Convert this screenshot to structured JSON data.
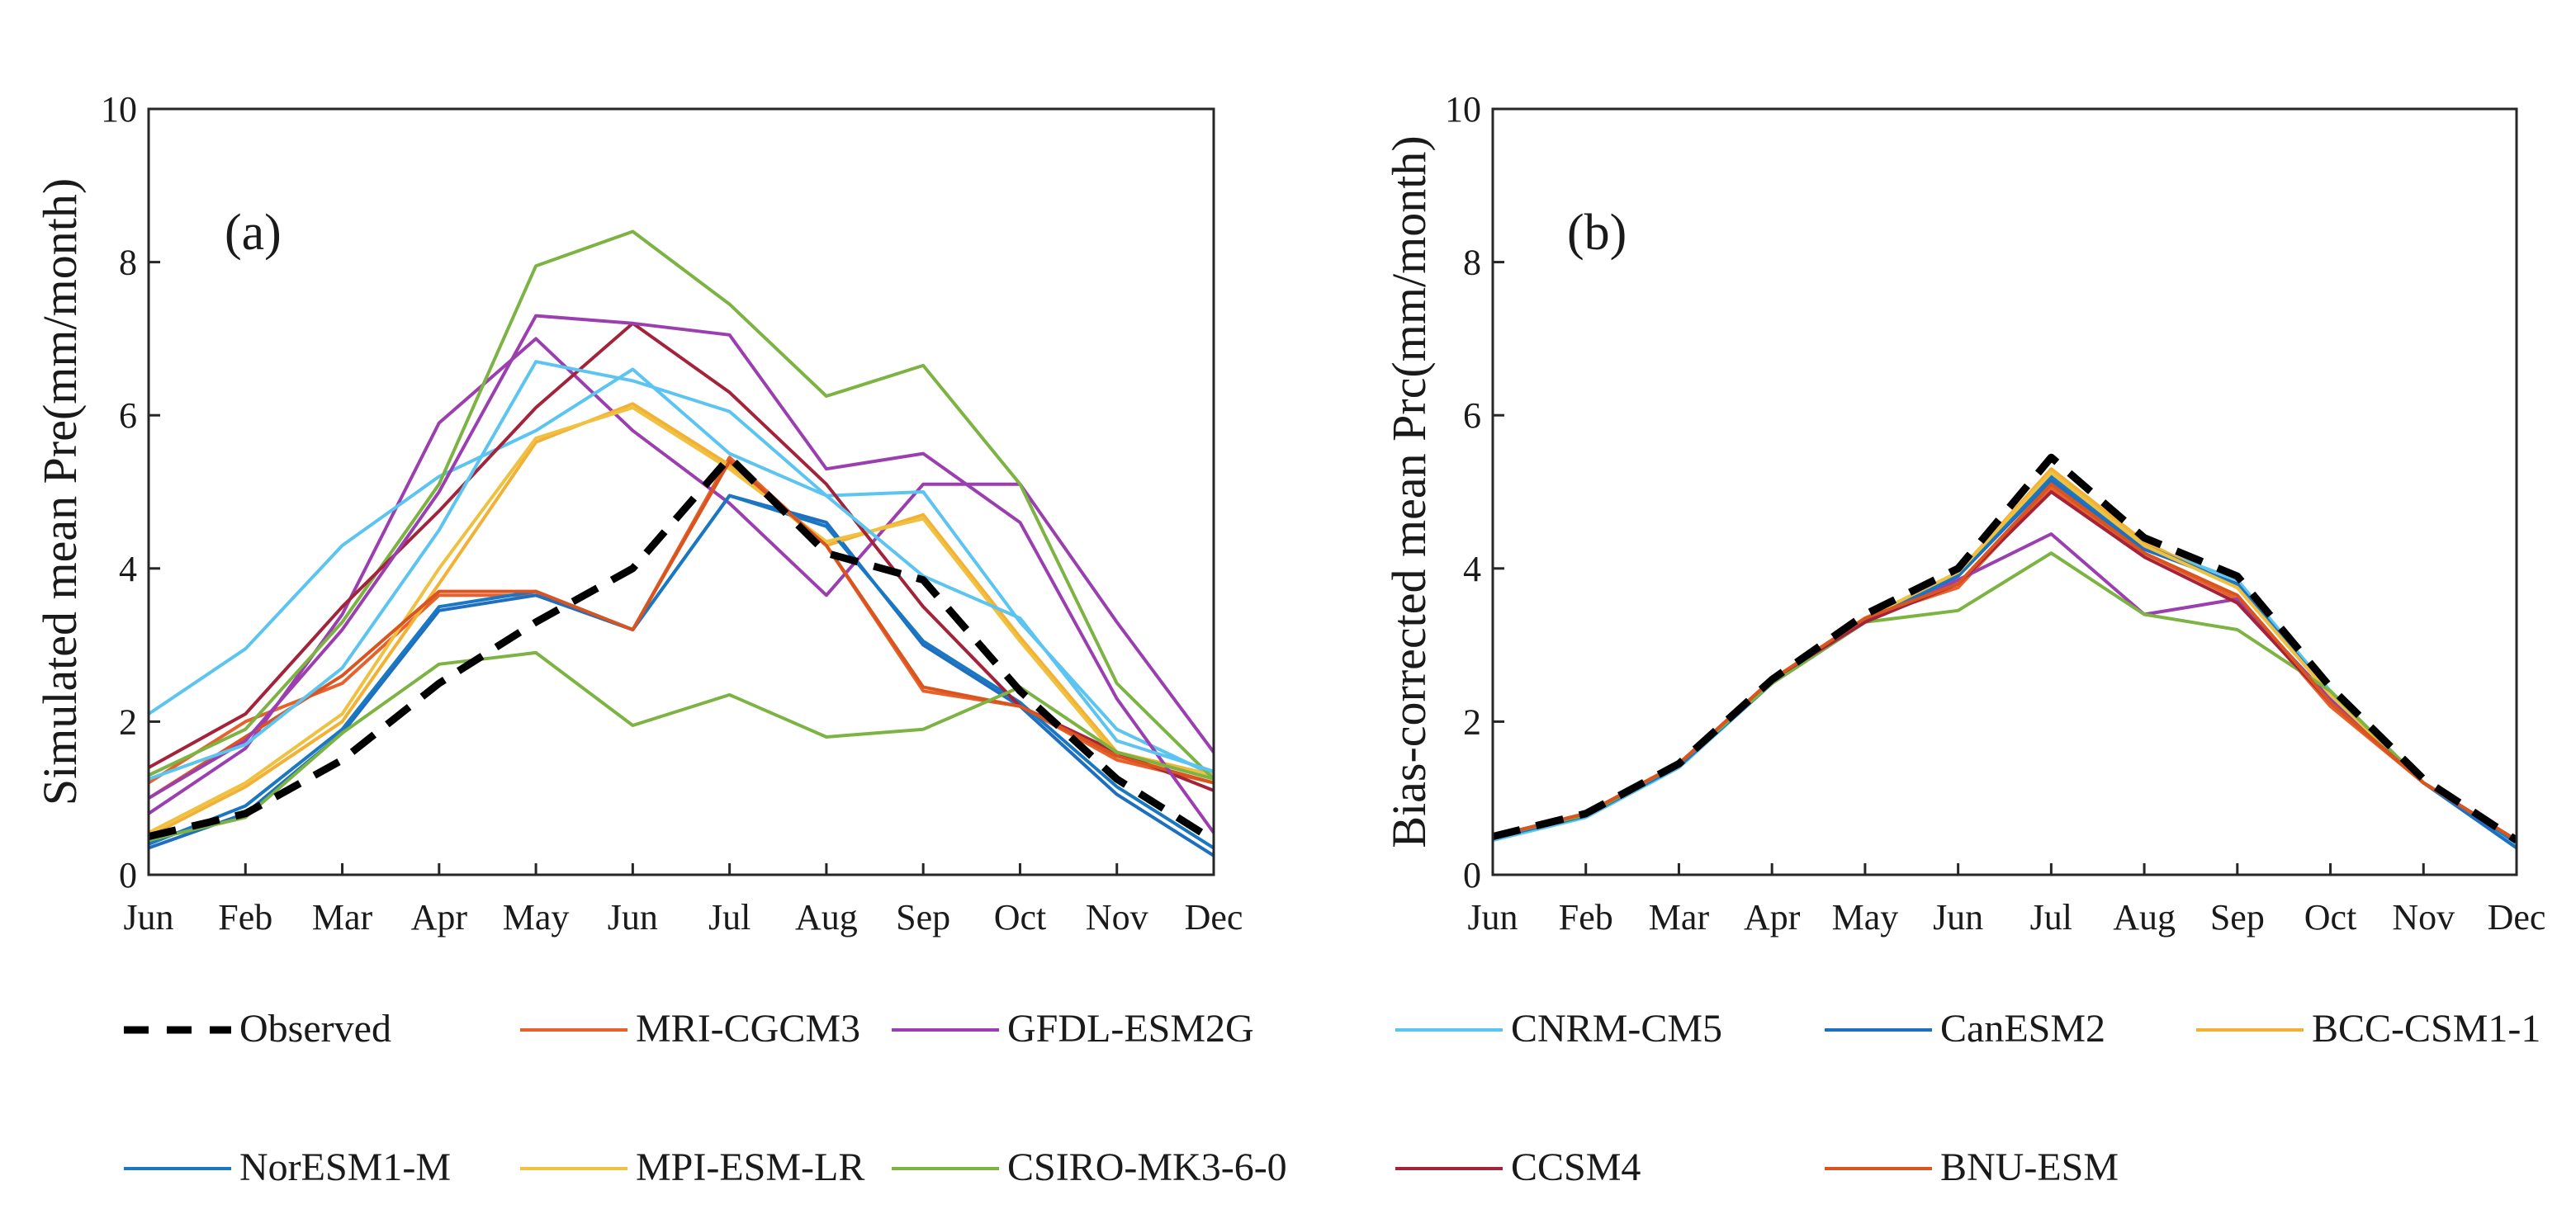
{
  "chart_data": [
    {
      "type": "line",
      "panel_label": "(a)",
      "ylabel": "Simulated mean Pre(mm/month)",
      "xlabel": "",
      "categories": [
        "Jun",
        "Feb",
        "Mar",
        "Apr",
        "May",
        "Jun",
        "Jul",
        "Aug",
        "Sep",
        "Oct",
        "Nov",
        "Dec"
      ],
      "ylim": [
        0,
        10
      ],
      "yticks": [
        0,
        2,
        4,
        6,
        8,
        10
      ],
      "series": [
        {
          "name": "MRI-CGCM3",
          "values": [
            1.2,
            2.0,
            2.5,
            3.65,
            3.65,
            3.2,
            5.45,
            4.3,
            2.4,
            2.2,
            1.5,
            1.2
          ]
        },
        {
          "name": "GFDL-ESM2G",
          "values": [
            0.8,
            1.65,
            3.4,
            5.9,
            7.0,
            5.8,
            4.85,
            3.65,
            5.1,
            5.1,
            3.3,
            1.6
          ]
        },
        {
          "name": "CNRM-CM5",
          "values": [
            2.1,
            2.95,
            4.3,
            5.2,
            5.8,
            6.6,
            5.5,
            4.95,
            5.0,
            3.3,
            1.9,
            1.3
          ]
        },
        {
          "name": "CanESM2",
          "values": [
            0.35,
            0.8,
            1.85,
            3.45,
            3.65,
            3.2,
            4.95,
            4.6,
            3.0,
            2.2,
            1.05,
            0.25
          ]
        },
        {
          "name": "BCC-CSM1-1",
          "values": [
            0.5,
            1.15,
            2.0,
            3.8,
            5.65,
            6.15,
            5.35,
            4.3,
            4.7,
            3.1,
            1.6,
            1.3
          ]
        },
        {
          "name": "NorESM1-M",
          "values": [
            0.4,
            0.9,
            1.9,
            3.5,
            3.7,
            3.2,
            4.95,
            4.55,
            3.05,
            2.25,
            1.15,
            0.35
          ]
        },
        {
          "name": "MPI-ESM-LR",
          "values": [
            0.55,
            1.2,
            2.1,
            4.0,
            5.7,
            6.1,
            5.3,
            4.35,
            4.65,
            3.05,
            1.55,
            1.3
          ]
        },
        {
          "name": "CSIRO-MK3-6-0",
          "values": [
            1.3,
            1.9,
            3.3,
            5.1,
            7.95,
            8.4,
            7.45,
            6.25,
            6.65,
            5.1,
            2.5,
            1.25
          ]
        },
        {
          "name": "CCSM4",
          "values": [
            1.4,
            2.1,
            3.5,
            4.75,
            6.1,
            7.2,
            6.3,
            5.1,
            3.5,
            2.2,
            1.6,
            1.1
          ]
        },
        {
          "name": "BNU-ESM",
          "values": [
            1.0,
            1.8,
            2.6,
            3.7,
            3.7,
            3.2,
            5.4,
            4.3,
            2.45,
            2.2,
            1.55,
            1.2
          ]
        },
        {
          "name": "GFDL-ESM2G (2)",
          "values": [
            1.0,
            1.75,
            3.2,
            5.0,
            7.3,
            7.2,
            7.05,
            5.3,
            5.5,
            4.6,
            2.3,
            0.55
          ]
        },
        {
          "name": "CSIRO-MK3-6-0 (2)",
          "values": [
            0.45,
            0.75,
            1.85,
            2.75,
            2.9,
            1.95,
            2.35,
            1.8,
            1.9,
            2.45,
            1.6,
            1.25
          ]
        },
        {
          "name": "CNRM-CM5 (2)",
          "values": [
            1.25,
            1.7,
            2.7,
            4.5,
            6.7,
            6.45,
            6.05,
            4.95,
            3.9,
            3.35,
            1.75,
            1.35
          ]
        },
        {
          "name": "Observed",
          "values": [
            0.5,
            0.8,
            1.5,
            2.5,
            3.3,
            4.0,
            5.45,
            4.2,
            3.85,
            2.4,
            1.25,
            0.45
          ]
        }
      ]
    },
    {
      "type": "line",
      "panel_label": "(b)",
      "ylabel": "Bias-corrected mean Prc(mm/month)",
      "xlabel": "",
      "categories": [
        "Jun",
        "Feb",
        "Mar",
        "Apr",
        "May",
        "Jun",
        "Jul",
        "Aug",
        "Sep",
        "Oct",
        "Nov",
        "Dec"
      ],
      "ylim": [
        0,
        10
      ],
      "yticks": [
        0,
        2,
        4,
        6,
        8,
        10
      ],
      "series": [
        {
          "name": "MRI-CGCM3",
          "values": [
            0.5,
            0.78,
            1.45,
            2.55,
            3.35,
            3.75,
            5.05,
            4.2,
            3.6,
            2.2,
            1.2,
            0.45
          ]
        },
        {
          "name": "GFDL-ESM2G",
          "values": [
            0.5,
            0.78,
            1.45,
            2.5,
            3.3,
            3.85,
            4.45,
            3.4,
            3.6,
            2.3,
            1.2,
            0.45
          ]
        },
        {
          "name": "CNRM-CM5",
          "values": [
            0.45,
            0.75,
            1.4,
            2.5,
            3.3,
            3.9,
            5.2,
            4.3,
            3.85,
            2.4,
            1.2,
            0.4
          ]
        },
        {
          "name": "CanESM2",
          "values": [
            0.48,
            0.77,
            1.42,
            2.5,
            3.3,
            3.9,
            5.15,
            4.25,
            3.8,
            2.35,
            1.2,
            0.35
          ]
        },
        {
          "name": "BCC-CSM1-1",
          "values": [
            0.5,
            0.8,
            1.45,
            2.55,
            3.35,
            3.95,
            5.3,
            4.35,
            3.75,
            2.35,
            1.2,
            0.45
          ]
        },
        {
          "name": "NorESM1-M",
          "values": [
            0.5,
            0.78,
            1.43,
            2.52,
            3.32,
            3.92,
            5.2,
            4.3,
            3.78,
            2.36,
            1.2,
            0.42
          ]
        },
        {
          "name": "MPI-ESM-LR",
          "values": [
            0.5,
            0.8,
            1.45,
            2.55,
            3.35,
            3.95,
            5.25,
            4.3,
            3.75,
            2.35,
            1.2,
            0.45
          ]
        },
        {
          "name": "CSIRO-MK3-6-0",
          "values": [
            0.5,
            0.78,
            1.45,
            2.5,
            3.3,
            3.45,
            4.2,
            3.4,
            3.2,
            2.4,
            1.2,
            0.45
          ]
        },
        {
          "name": "CCSM4",
          "values": [
            0.5,
            0.8,
            1.45,
            2.55,
            3.3,
            3.8,
            5.0,
            4.15,
            3.55,
            2.25,
            1.2,
            0.45
          ]
        },
        {
          "name": "BNU-ESM",
          "values": [
            0.5,
            0.8,
            1.45,
            2.55,
            3.35,
            3.8,
            5.1,
            4.2,
            3.65,
            2.25,
            1.2,
            0.45
          ]
        },
        {
          "name": "Observed",
          "values": [
            0.5,
            0.8,
            1.45,
            2.55,
            3.4,
            4.0,
            5.45,
            4.4,
            3.9,
            2.45,
            1.25,
            0.45
          ]
        }
      ]
    }
  ],
  "legend": [
    {
      "name": "Observed",
      "color": "#000000",
      "dashed": true
    },
    {
      "name": "MRI-CGCM3",
      "color": "#e8612c",
      "dashed": false
    },
    {
      "name": "GFDL-ESM2G",
      "color": "#9b3fb0",
      "dashed": false
    },
    {
      "name": "CNRM-CM5",
      "color": "#5bc4f0",
      "dashed": false
    },
    {
      "name": "CanESM2",
      "color": "#1f6fc0",
      "dashed": false
    },
    {
      "name": "BCC-CSM1-1",
      "color": "#f2b134",
      "dashed": false
    },
    {
      "name": "NorESM1-M",
      "color": "#1a78c2",
      "dashed": false
    },
    {
      "name": "MPI-ESM-LR",
      "color": "#f0c040",
      "dashed": false
    },
    {
      "name": "CSIRO-MK3-6-0",
      "color": "#7cb342",
      "dashed": false
    },
    {
      "name": "CCSM4",
      "color": "#a3243a",
      "dashed": false
    },
    {
      "name": "BNU-ESM",
      "color": "#d9541e",
      "dashed": false
    }
  ],
  "series_colors": {
    "MRI-CGCM3": "#e8612c",
    "GFDL-ESM2G": "#9b3fb0",
    "CNRM-CM5": "#5bc4f0",
    "CanESM2": "#1f6fc0",
    "BCC-CSM1-1": "#f2b134",
    "NorESM1-M": "#1a78c2",
    "MPI-ESM-LR": "#f0c040",
    "CSIRO-MK3-6-0": "#7cb342",
    "CCSM4": "#a3243a",
    "BNU-ESM": "#d9541e",
    "GFDL-ESM2G (2)": "#9b3fb0",
    "CSIRO-MK3-6-0 (2)": "#7cb342",
    "CNRM-CM5 (2)": "#5bc4f0",
    "Observed": "#000000"
  }
}
